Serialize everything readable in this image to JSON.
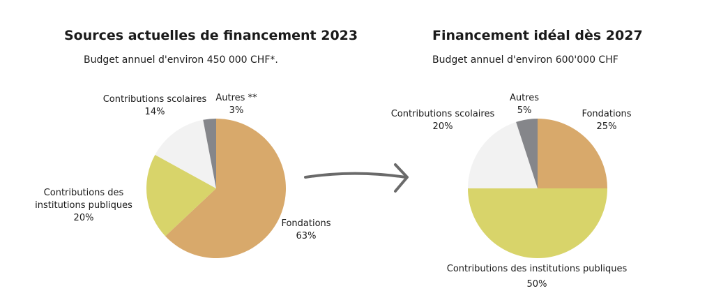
{
  "chart_data": [
    {
      "type": "pie",
      "title": "Sources actuelles de financement 2023",
      "subtitle": "Budget annuel d'environ 450 000 CHF*.",
      "slices": [
        {
          "label": "Fondations",
          "value": 63,
          "pct": "63%",
          "color": "#d8a96b"
        },
        {
          "label": "Contributions des institutions publiques",
          "label_lines": [
            "Contributions des",
            "institutions publiques"
          ],
          "value": 20,
          "pct": "20%",
          "color": "#d8d46a"
        },
        {
          "label": "Contributions scolaires",
          "value": 14,
          "pct": "14%",
          "color": "#f2f2f2"
        },
        {
          "label": "Autres **",
          "value": 3,
          "pct": "3%",
          "color": "#85868a"
        }
      ]
    },
    {
      "type": "pie",
      "title": "Financement idéal dès 2027",
      "subtitle": "Budget annuel d'environ 600'000 CHF",
      "slices": [
        {
          "label": "Fondations",
          "value": 25,
          "pct": "25%",
          "color": "#d8a96b"
        },
        {
          "label": "Contributions des institutions publiques",
          "value": 50,
          "pct": "50%",
          "color": "#d8d46a"
        },
        {
          "label": "Contributions scolaires",
          "value": 20,
          "pct": "20%",
          "color": "#f2f2f2"
        },
        {
          "label": "Autres",
          "value": 5,
          "pct": "5%",
          "color": "#85868a"
        }
      ]
    }
  ],
  "arrow_icon": "right-arrow-icon"
}
